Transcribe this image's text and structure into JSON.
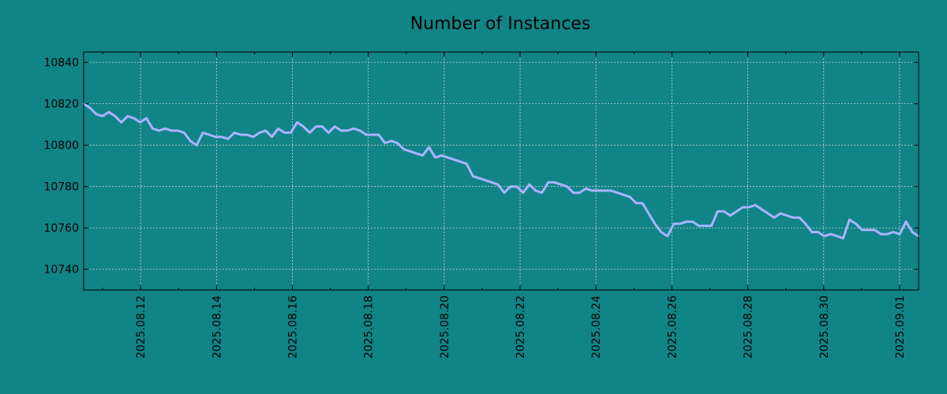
{
  "chart_data": {
    "type": "line",
    "title": "Number of Instances",
    "xlabel": "",
    "ylabel": "",
    "x_start": "2025-08-10 12:00",
    "x_end": "2025-09-01 12:00",
    "ylim": [
      10730,
      10845
    ],
    "y_ticks": [
      10740,
      10760,
      10780,
      10800,
      10820,
      10840
    ],
    "x_ticks": [
      "2025.08.12",
      "2025.08.14",
      "2025.08.16",
      "2025.08.18",
      "2025.08.20",
      "2025.08.22",
      "2025.08.24",
      "2025.08.26",
      "2025.08.28",
      "2025.08.30",
      "2025.09.01"
    ],
    "grid": true,
    "colors": {
      "background": "#118487",
      "line": "#a9b4ff",
      "grid": "#c8d8d8"
    },
    "series": [
      {
        "values": [
          10820,
          10818,
          10815,
          10814,
          10816,
          10814,
          10811,
          10814,
          10813,
          10811,
          10813,
          10808,
          10807,
          10808,
          10807,
          10807,
          10806,
          10802,
          10800,
          10806,
          10805,
          10804,
          10804,
          10803,
          10806,
          10805,
          10805,
          10804,
          10806,
          10807,
          10804,
          10808,
          10806,
          10806,
          10811,
          10809,
          10806,
          10809,
          10809,
          10806,
          10809,
          10807,
          10807,
          10808,
          10807,
          10805,
          10805,
          10805,
          10801,
          10802,
          10801,
          10798,
          10797,
          10796,
          10795,
          10799,
          10794,
          10795,
          10794,
          10793,
          10792,
          10791,
          10785,
          10784,
          10783,
          10782,
          10781,
          10777,
          10780,
          10780,
          10777,
          10781,
          10778,
          10777,
          10782,
          10782,
          10781,
          10780,
          10777,
          10777,
          10779,
          10778,
          10778,
          10778,
          10778,
          10777,
          10776,
          10775,
          10772,
          10772,
          10767,
          10762,
          10758,
          10756,
          10762,
          10762,
          10763,
          10763,
          10761,
          10761,
          10761,
          10768,
          10768,
          10766,
          10768,
          10770,
          10770,
          10771,
          10769,
          10767,
          10765,
          10767,
          10766,
          10765,
          10765,
          10762,
          10758,
          10758,
          10756,
          10757,
          10756,
          10755,
          10764,
          10762,
          10759,
          10759,
          10759,
          10757,
          10757,
          10758,
          10757,
          10763,
          10758,
          10756
        ]
      }
    ]
  }
}
